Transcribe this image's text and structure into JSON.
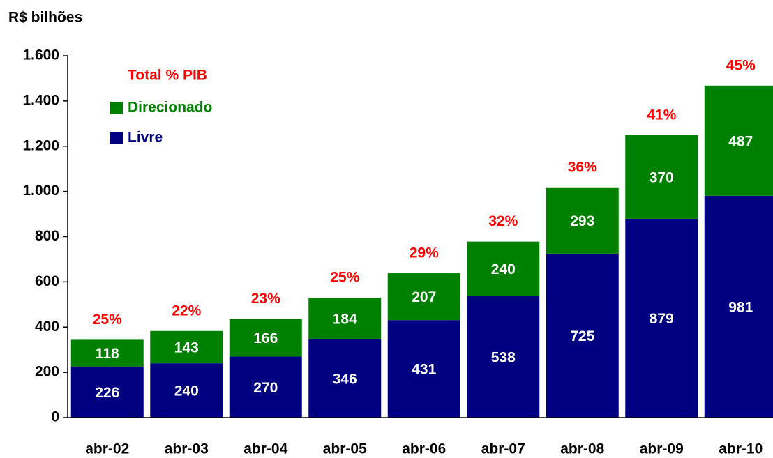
{
  "chart_data": {
    "type": "stacked_bar",
    "y_label": "R$ bilhões",
    "categories": [
      "abr-02",
      "abr-03",
      "abr-04",
      "abr-05",
      "abr-06",
      "abr-07",
      "abr-08",
      "abr-09",
      "abr-10"
    ],
    "series": [
      {
        "name": "Livre",
        "color": "#000080",
        "values": [
          226,
          240,
          270,
          346,
          431,
          538,
          725,
          879,
          981
        ]
      },
      {
        "name": "Direcionado",
        "color": "#008000",
        "values": [
          118,
          143,
          166,
          184,
          207,
          240,
          293,
          370,
          487
        ]
      }
    ],
    "total_pib": {
      "name": "Total % PIB",
      "color": "#ff0000",
      "values": [
        25,
        22,
        23,
        25,
        29,
        32,
        36,
        41,
        45
      ],
      "value_labels": [
        "25%",
        "22%",
        "23%",
        "25%",
        "29%",
        "32%",
        "36%",
        "41%",
        "45%"
      ]
    },
    "ylim": [
      0,
      1600
    ],
    "yticks": [
      0,
      200,
      400,
      600,
      800,
      {
        "value": 1000,
        "label": "1.000"
      },
      {
        "value": 1200,
        "label": "1.200"
      },
      {
        "value": 1400,
        "label": "1.400"
      },
      {
        "value": 1600,
        "label": "1.600"
      }
    ]
  }
}
